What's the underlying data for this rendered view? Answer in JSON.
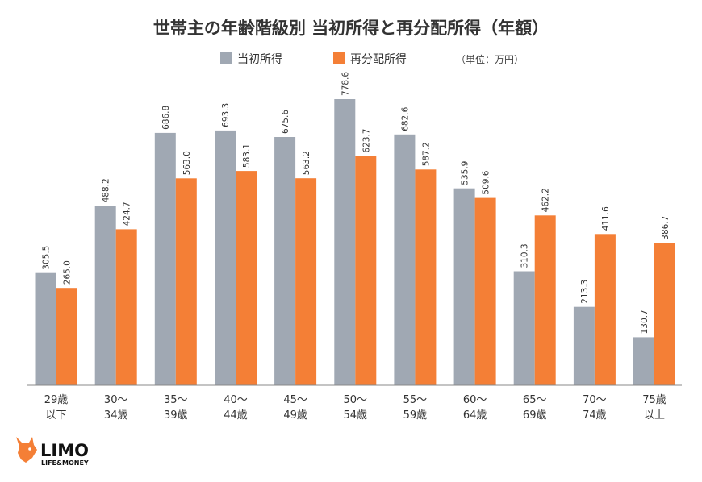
{
  "colors": {
    "initial": "#a0a8b3",
    "redistributed": "#f47f36",
    "axis": "#888888",
    "logo_orange": "#f47f36"
  },
  "logo": {
    "name": "LIMO",
    "tagline": "LIFE&MONEY",
    "icon": "fox-head-icon"
  },
  "chart_data": {
    "type": "bar",
    "title": "世帯主の年齢階級別 当初所得と再分配所得（年額）",
    "unit": "（単位：万円）",
    "legend_position": "top",
    "grid": false,
    "ylim": [
      0,
      800
    ],
    "categories": [
      [
        "29歳",
        "以下"
      ],
      [
        "30〜",
        "34歳"
      ],
      [
        "35〜",
        "39歳"
      ],
      [
        "40〜",
        "44歳"
      ],
      [
        "45〜",
        "49歳"
      ],
      [
        "50〜",
        "54歳"
      ],
      [
        "55〜",
        "59歳"
      ],
      [
        "60〜",
        "64歳"
      ],
      [
        "65〜",
        "69歳"
      ],
      [
        "70〜",
        "74歳"
      ],
      [
        "75歳",
        "以上"
      ]
    ],
    "series": [
      {
        "name": "当初所得",
        "values": [
          305.5,
          488.2,
          686.8,
          693.3,
          675.6,
          778.6,
          682.6,
          535.9,
          310.3,
          213.3,
          130.7
        ],
        "labels": [
          "305.5",
          "488.2",
          "686.8",
          "693.3",
          "675.6",
          "778.6",
          "682.6",
          "535.9",
          "310.3",
          "213.3",
          "130.7"
        ]
      },
      {
        "name": "再分配所得",
        "values": [
          265.0,
          424.7,
          563.0,
          583.1,
          563.2,
          623.7,
          587.2,
          509.6,
          462.2,
          411.6,
          386.7
        ],
        "labels": [
          "265.0",
          "424.7",
          "563.0",
          "583.1",
          "563.2",
          "623.7",
          "587.2",
          "509.6",
          "462.2",
          "411.6",
          "386.7"
        ]
      }
    ]
  }
}
